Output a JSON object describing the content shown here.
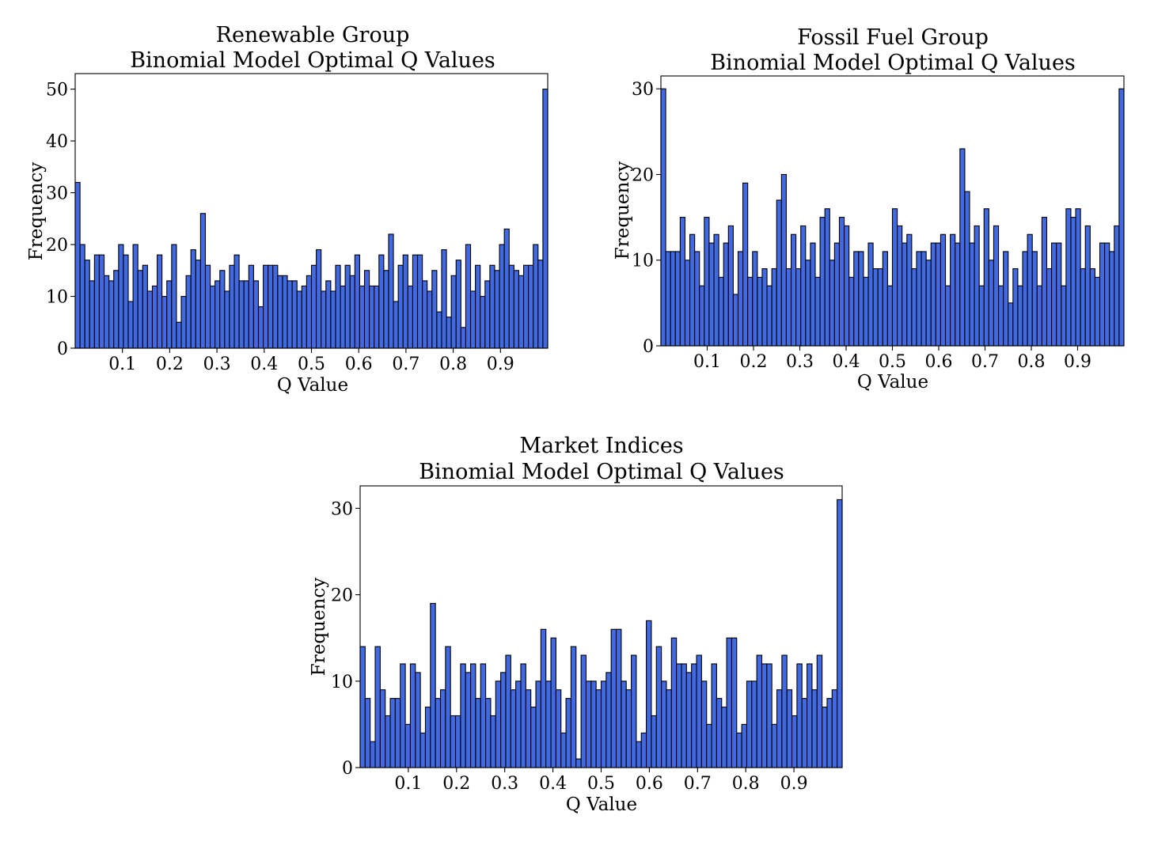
{
  "chart_data": [
    {
      "type": "bar",
      "title": [
        "Renewable Group",
        "Binomial Model Optimal Q Values"
      ],
      "xlabel": "Q Value",
      "ylabel": "Frequency",
      "bar_color": "#4169e1",
      "xlim": [
        0,
        1
      ],
      "ylim": [
        0,
        53
      ],
      "xticks": [
        "0.1",
        "0.2",
        "0.3",
        "0.4",
        "0.5",
        "0.6",
        "0.7",
        "0.8",
        "0.9"
      ],
      "yticks": [
        "0",
        "10",
        "20",
        "30",
        "40",
        "50"
      ],
      "values": [
        32,
        20,
        17,
        13,
        18,
        18,
        14,
        13,
        15,
        20,
        18,
        9,
        20,
        15,
        16,
        11,
        12,
        18,
        10,
        13,
        20,
        5,
        10,
        14,
        19,
        17,
        26,
        16,
        12,
        13,
        15,
        11,
        16,
        18,
        13,
        13,
        16,
        13,
        8,
        16,
        16,
        16,
        14,
        14,
        13,
        13,
        11,
        12,
        14,
        16,
        19,
        11,
        13,
        11,
        16,
        12,
        16,
        14,
        18,
        12,
        15,
        12,
        12,
        18,
        15,
        22,
        9,
        16,
        18,
        12,
        18,
        18,
        13,
        11,
        15,
        7,
        19,
        6,
        14,
        17,
        4,
        20,
        11,
        16,
        10,
        13,
        16,
        15,
        20,
        23,
        16,
        15,
        14,
        16,
        16,
        20,
        17,
        50
      ]
    },
    {
      "type": "bar",
      "title": [
        "Fossil Fuel Group",
        "Binomial Model Optimal Q Values"
      ],
      "xlabel": "Q Value",
      "ylabel": "Frequency",
      "bar_color": "#4169e1",
      "xlim": [
        0,
        1
      ],
      "ylim": [
        0,
        31.5
      ],
      "xticks": [
        "0.1",
        "0.2",
        "0.3",
        "0.4",
        "0.5",
        "0.6",
        "0.7",
        "0.8",
        "0.9"
      ],
      "yticks": [
        "0",
        "10",
        "20",
        "30"
      ],
      "values": [
        30,
        11,
        11,
        11,
        15,
        10,
        13,
        11,
        7,
        15,
        12,
        13,
        8,
        12,
        14,
        6,
        11,
        19,
        8,
        11,
        8,
        9,
        7,
        9,
        17,
        20,
        9,
        13,
        9,
        14,
        10,
        12,
        8,
        15,
        16,
        10,
        12,
        15,
        14,
        8,
        11,
        11,
        8,
        12,
        9,
        9,
        11,
        7,
        16,
        14,
        12,
        13,
        9,
        11,
        11,
        10,
        12,
        12,
        13,
        7,
        13,
        12,
        23,
        18,
        12,
        14,
        7,
        16,
        10,
        14,
        7,
        11,
        5,
        9,
        7,
        11,
        13,
        11,
        7,
        15,
        9,
        12,
        12,
        7,
        16,
        15,
        16,
        9,
        14,
        9,
        8,
        12,
        12,
        11,
        14,
        30
      ]
    },
    {
      "type": "bar",
      "title": [
        "Market Indices",
        "Binomial Model Optimal Q Values"
      ],
      "xlabel": "Q Value",
      "ylabel": "Frequency",
      "bar_color": "#4169e1",
      "xlim": [
        0,
        1
      ],
      "ylim": [
        0,
        32.6
      ],
      "xticks": [
        "0.1",
        "0.2",
        "0.3",
        "0.4",
        "0.5",
        "0.6",
        "0.7",
        "0.8",
        "0.9"
      ],
      "yticks": [
        "0",
        "10",
        "20",
        "30"
      ],
      "values": [
        14,
        8,
        3,
        14,
        9,
        6,
        8,
        8,
        12,
        5,
        12,
        11,
        4,
        7,
        19,
        8,
        9,
        14,
        6,
        6,
        12,
        11,
        12,
        8,
        12,
        8,
        6,
        10,
        11,
        13,
        9,
        10,
        12,
        9,
        7,
        10,
        16,
        10,
        15,
        9,
        4,
        8,
        14,
        1,
        13,
        10,
        10,
        9,
        10,
        11,
        16,
        16,
        10,
        9,
        13,
        3,
        4,
        17,
        6,
        14,
        10,
        9,
        15,
        12,
        12,
        11,
        12,
        13,
        10,
        5,
        12,
        8,
        7,
        15,
        15,
        4,
        5,
        10,
        10,
        13,
        12,
        12,
        5,
        9,
        13,
        9,
        6,
        12,
        8,
        12,
        9,
        13,
        7,
        8,
        9,
        31
      ]
    }
  ]
}
